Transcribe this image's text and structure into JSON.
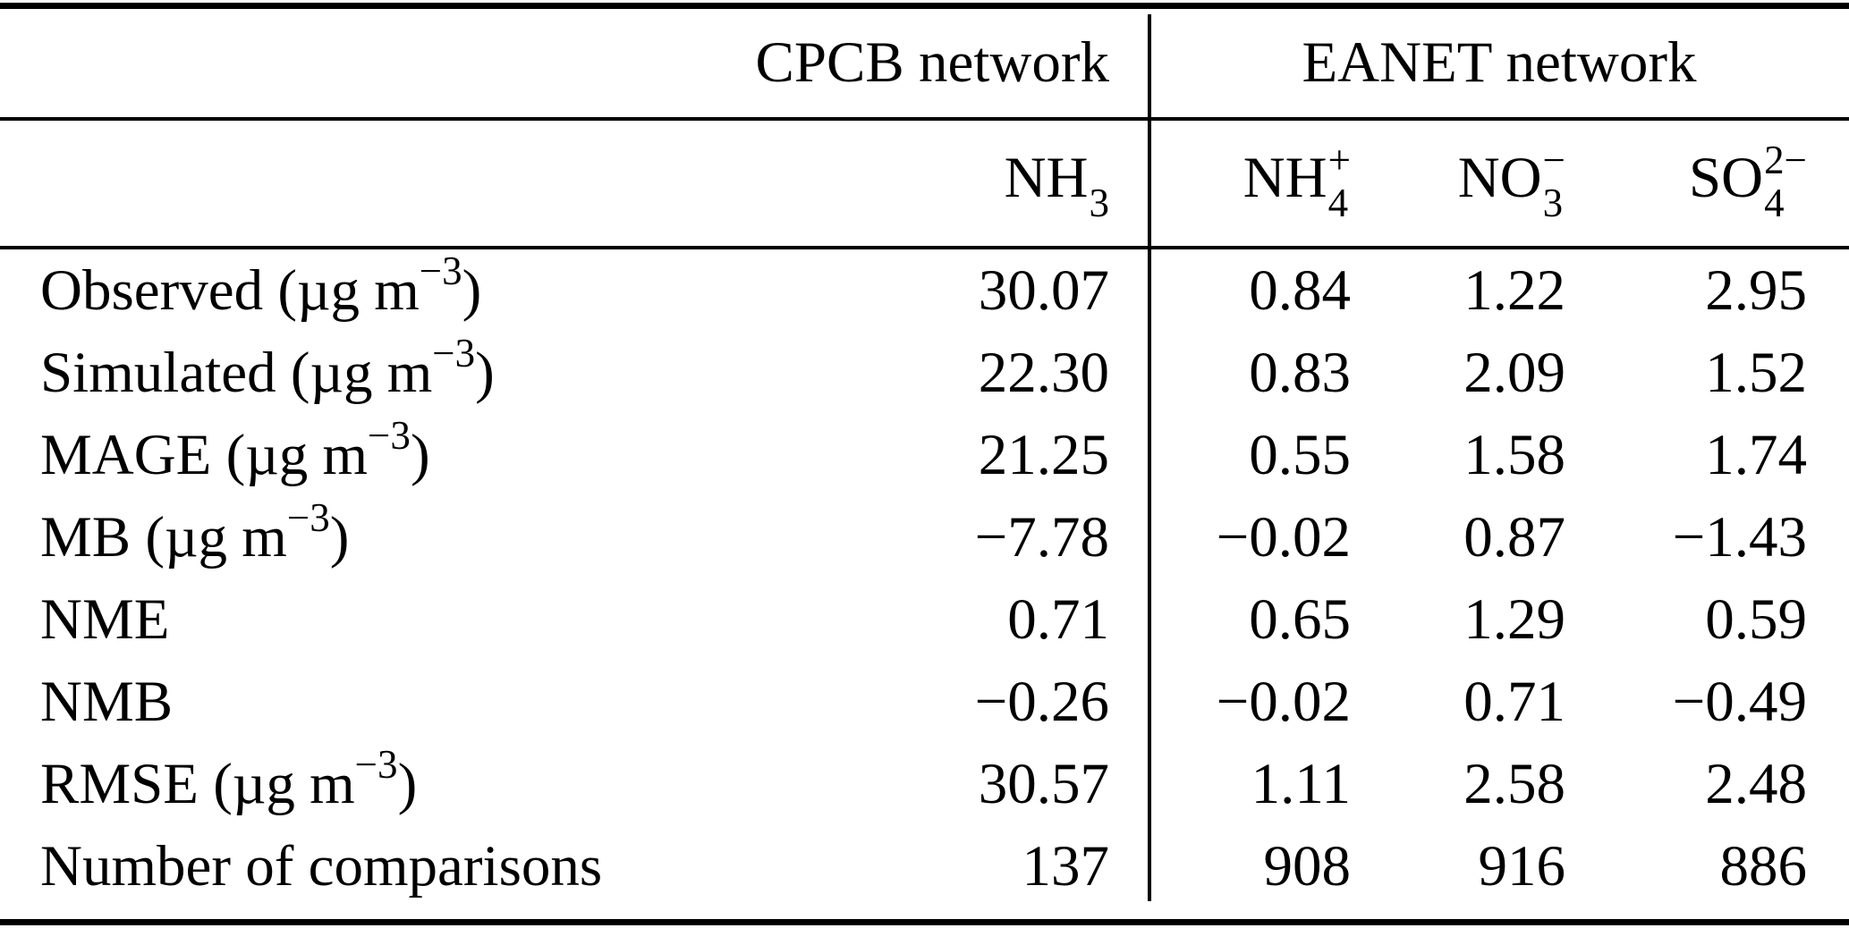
{
  "page": {
    "background": "#ffffff",
    "text_color": "#000000"
  },
  "table": {
    "group_headers": {
      "cpcb": "CPCB network",
      "eanet": "EANET network"
    },
    "species": [
      {
        "base": "NH",
        "sup": "",
        "sub": "3"
      },
      {
        "base": "NH",
        "sup": "+",
        "sub": "4"
      },
      {
        "base": "NO",
        "sup": "−",
        "sub": "3"
      },
      {
        "base": "SO",
        "sup": "2−",
        "sub": "4"
      }
    ],
    "rows": [
      {
        "metric": "Observed",
        "unit_pre": " (µg m",
        "unit_sup": "−3",
        "unit_post": ")",
        "values": [
          "30.07",
          "0.84",
          "1.22",
          "2.95"
        ]
      },
      {
        "metric": "Simulated",
        "unit_pre": " (µg m",
        "unit_sup": "−3",
        "unit_post": ")",
        "values": [
          "22.30",
          "0.83",
          "2.09",
          "1.52"
        ]
      },
      {
        "metric": "MAGE",
        "unit_pre": " (µg m",
        "unit_sup": "−3",
        "unit_post": ")",
        "values": [
          "21.25",
          "0.55",
          "1.58",
          "1.74"
        ]
      },
      {
        "metric": "MB",
        "unit_pre": " (µg m",
        "unit_sup": "−3",
        "unit_post": ")",
        "values": [
          "−7.78",
          "−0.02",
          "0.87",
          "−1.43"
        ]
      },
      {
        "metric": "NME",
        "unit_pre": "",
        "unit_sup": "",
        "unit_post": "",
        "values": [
          "0.71",
          "0.65",
          "1.29",
          "0.59"
        ]
      },
      {
        "metric": "NMB",
        "unit_pre": "",
        "unit_sup": "",
        "unit_post": "",
        "values": [
          "−0.26",
          "−0.02",
          "0.71",
          "−0.49"
        ]
      },
      {
        "metric": "RMSE",
        "unit_pre": " (µg m",
        "unit_sup": "−3",
        "unit_post": ")",
        "values": [
          "30.57",
          "1.11",
          "2.58",
          "2.48"
        ]
      },
      {
        "metric": "Number of comparisons",
        "unit_pre": "",
        "unit_sup": "",
        "unit_post": "",
        "values": [
          "137",
          "908",
          "916",
          "886"
        ]
      }
    ]
  },
  "chart_data": {
    "type": "table",
    "column_groups": [
      "CPCB network",
      "EANET network"
    ],
    "columns": [
      "Metric",
      "NH3 (CPCB)",
      "NH4+ (EANET)",
      "NO3− (EANET)",
      "SO42− (EANET)"
    ],
    "rows": [
      [
        "Observed (µg m−3)",
        30.07,
        0.84,
        1.22,
        2.95
      ],
      [
        "Simulated (µg m−3)",
        22.3,
        0.83,
        2.09,
        1.52
      ],
      [
        "MAGE (µg m−3)",
        21.25,
        0.55,
        1.58,
        1.74
      ],
      [
        "MB (µg m−3)",
        -7.78,
        -0.02,
        0.87,
        -1.43
      ],
      [
        "NME",
        0.71,
        0.65,
        1.29,
        0.59
      ],
      [
        "NMB",
        -0.26,
        -0.02,
        0.71,
        -0.49
      ],
      [
        "RMSE (µg m−3)",
        30.57,
        1.11,
        2.58,
        2.48
      ],
      [
        "Number of comparisons",
        137,
        908,
        916,
        886
      ]
    ]
  }
}
